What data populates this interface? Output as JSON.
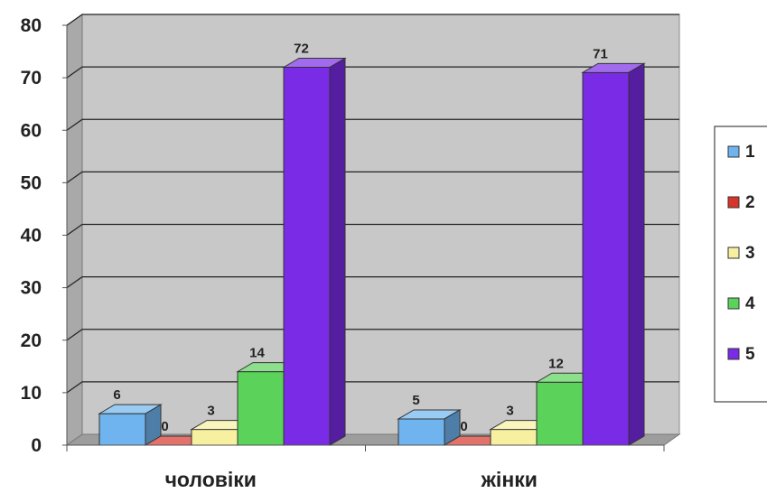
{
  "chart_data": {
    "type": "bar",
    "categories": [
      "чоловіки",
      "жінки"
    ],
    "series": [
      {
        "name": "1",
        "values": [
          6,
          5
        ],
        "color": "#6FB4EE"
      },
      {
        "name": "2",
        "values": [
          0,
          0
        ],
        "color": "#D7352B"
      },
      {
        "name": "3",
        "values": [
          3,
          3
        ],
        "color": "#F6F0A0"
      },
      {
        "name": "4",
        "values": [
          14,
          12
        ],
        "color": "#5BD35B"
      },
      {
        "name": "5",
        "values": [
          72,
          71
        ],
        "color": "#7A2BE5"
      }
    ],
    "ylim": [
      0,
      80
    ],
    "yticks": [
      "0",
      "10",
      "20",
      "30",
      "40",
      "50",
      "60",
      "70",
      "80"
    ],
    "grid": true,
    "legend": "right",
    "style": "3d-clustered-column",
    "wall_color": "#C8C8C8"
  }
}
